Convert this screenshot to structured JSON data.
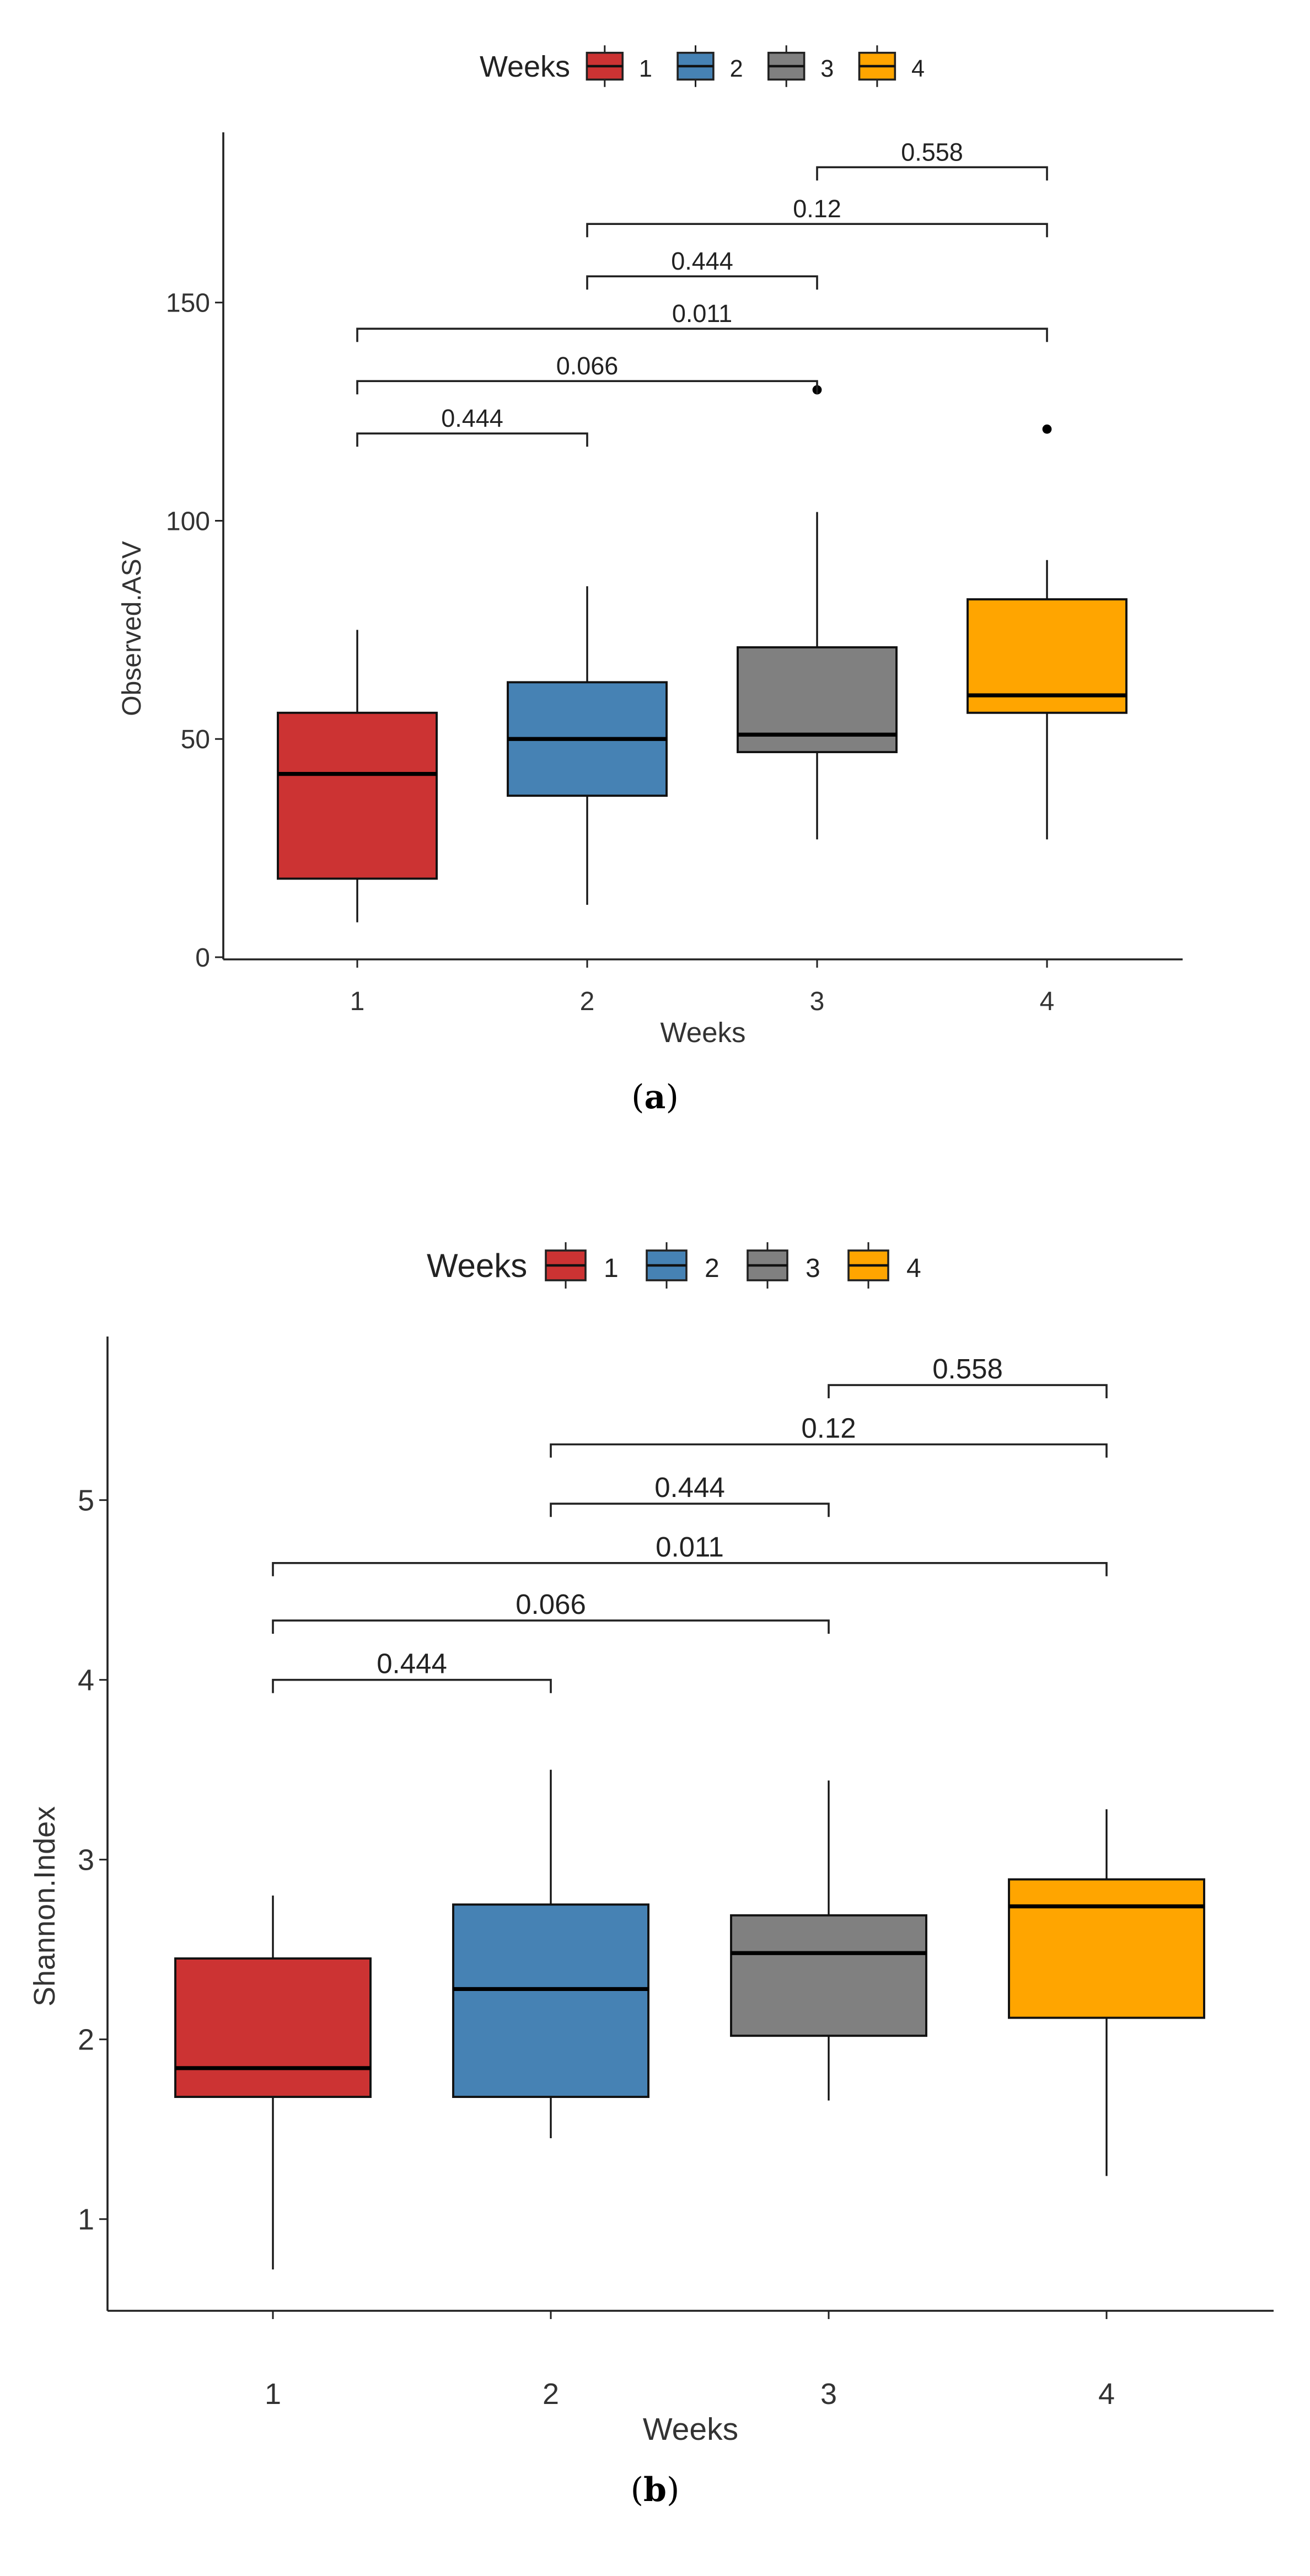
{
  "chart_data": [
    {
      "type": "box",
      "panel_label": "(a)",
      "panel_letter": "a",
      "xlabel": "Weeks",
      "ylabel": "Observed.ASV",
      "categories": [
        "1",
        "2",
        "3",
        "4"
      ],
      "ylim": [
        -0.5,
        189
      ],
      "yticks": [
        0,
        50,
        100,
        150
      ],
      "grid": false,
      "legend": {
        "title": "Weeks",
        "position": "top",
        "entries": [
          "1",
          "2",
          "3",
          "4"
        ]
      },
      "colors": [
        "#CC3333",
        "#4682B4",
        "#808080",
        "#FFA500"
      ],
      "boxes": [
        {
          "week": "1",
          "min": 8,
          "q1": 18,
          "median": 42,
          "q3": 56,
          "max": 75,
          "outliers": []
        },
        {
          "week": "2",
          "min": 12,
          "q1": 37,
          "median": 50,
          "q3": 63,
          "max": 85,
          "outliers": []
        },
        {
          "week": "3",
          "min": 27,
          "q1": 47,
          "median": 51,
          "q3": 71,
          "max": 102,
          "outliers": [
            130
          ]
        },
        {
          "week": "4",
          "min": 27,
          "q1": 56,
          "median": 60,
          "q3": 82,
          "max": 91,
          "outliers": [
            121
          ]
        }
      ],
      "comparisons": [
        {
          "from": 1,
          "to": 2,
          "y": 120,
          "label": "0.444"
        },
        {
          "from": 1,
          "to": 3,
          "y": 132,
          "label": "0.066"
        },
        {
          "from": 1,
          "to": 4,
          "y": 144,
          "label": "0.011"
        },
        {
          "from": 2,
          "to": 3,
          "y": 156,
          "label": "0.444"
        },
        {
          "from": 2,
          "to": 4,
          "y": 168,
          "label": "0.12"
        },
        {
          "from": 3,
          "to": 4,
          "y": 181,
          "label": "0.558"
        }
      ]
    },
    {
      "type": "box",
      "panel_label": "(b)",
      "panel_letter": "b",
      "xlabel": "Weeks",
      "ylabel": "Shannon.Index",
      "categories": [
        "1",
        "2",
        "3",
        "4"
      ],
      "ylim": [
        0.49,
        5.91
      ],
      "yticks": [
        1,
        2,
        3,
        4,
        5
      ],
      "grid": false,
      "legend": {
        "title": "Weeks",
        "position": "top",
        "entries": [
          "1",
          "2",
          "3",
          "4"
        ]
      },
      "colors": [
        "#CC3333",
        "#4682B4",
        "#808080",
        "#FFA500"
      ],
      "boxes": [
        {
          "week": "1",
          "min": 0.72,
          "q1": 1.68,
          "median": 1.84,
          "q3": 2.45,
          "max": 2.8,
          "outliers": []
        },
        {
          "week": "2",
          "min": 1.45,
          "q1": 1.68,
          "median": 2.28,
          "q3": 2.75,
          "max": 3.5,
          "outliers": []
        },
        {
          "week": "3",
          "min": 1.66,
          "q1": 2.02,
          "median": 2.48,
          "q3": 2.69,
          "max": 3.44,
          "outliers": []
        },
        {
          "week": "4",
          "min": 1.24,
          "q1": 2.12,
          "median": 2.74,
          "q3": 2.89,
          "max": 3.28,
          "outliers": []
        }
      ],
      "comparisons": [
        {
          "from": 1,
          "to": 2,
          "y": 4.0,
          "label": "0.444"
        },
        {
          "from": 1,
          "to": 3,
          "y": 4.33,
          "label": "0.066"
        },
        {
          "from": 1,
          "to": 4,
          "y": 4.65,
          "label": "0.011"
        },
        {
          "from": 2,
          "to": 3,
          "y": 4.98,
          "label": "0.444"
        },
        {
          "from": 2,
          "to": 4,
          "y": 5.31,
          "label": "0.12"
        },
        {
          "from": 3,
          "to": 4,
          "y": 5.64,
          "label": "0.558"
        }
      ]
    }
  ]
}
